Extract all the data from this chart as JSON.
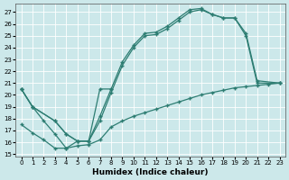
{
  "xlabel": "Humidex (Indice chaleur)",
  "background_color": "#cce8ea",
  "grid_color": "#b8d8dc",
  "line_color": "#2d7d72",
  "xlim": [
    -0.5,
    23.5
  ],
  "ylim": [
    14.8,
    27.7
  ],
  "yticks": [
    15,
    16,
    17,
    18,
    19,
    20,
    21,
    22,
    23,
    24,
    25,
    26,
    27
  ],
  "xticks": [
    0,
    1,
    2,
    3,
    4,
    5,
    6,
    7,
    8,
    9,
    10,
    11,
    12,
    13,
    14,
    15,
    16,
    17,
    18,
    19,
    20,
    21,
    22,
    23
  ],
  "curve1_x": [
    0,
    1,
    3,
    4,
    5,
    6,
    7,
    8,
    9,
    10,
    11,
    12,
    13,
    14,
    15,
    16,
    17,
    18,
    19,
    20,
    21,
    23
  ],
  "curve1_y": [
    20.5,
    19.0,
    17.8,
    16.7,
    16.1,
    16.1,
    18.2,
    20.5,
    22.8,
    24.2,
    25.2,
    25.3,
    25.8,
    26.5,
    27.2,
    27.3,
    26.8,
    26.5,
    26.5,
    25.2,
    21.2,
    21.0
  ],
  "curve2_x": [
    0,
    1,
    3,
    4,
    5,
    6,
    7,
    8,
    9,
    10,
    11,
    12,
    13,
    14,
    15,
    16,
    17,
    18,
    19,
    20,
    21,
    23
  ],
  "curve2_y": [
    20.5,
    19.0,
    17.8,
    16.7,
    16.1,
    16.1,
    17.8,
    20.2,
    22.5,
    24.0,
    25.0,
    25.1,
    25.6,
    26.3,
    27.0,
    27.2,
    26.8,
    26.5,
    26.5,
    25.0,
    21.0,
    21.0
  ],
  "curve3_x": [
    0,
    1,
    2,
    3,
    4,
    5,
    6,
    7,
    8,
    9,
    10,
    11,
    12,
    13,
    14,
    15,
    16,
    17,
    18,
    19,
    20,
    21,
    22,
    23
  ],
  "curve3_y": [
    17.5,
    16.8,
    16.2,
    15.5,
    15.5,
    15.7,
    15.8,
    16.2,
    17.3,
    17.8,
    18.2,
    18.5,
    18.8,
    19.1,
    19.4,
    19.7,
    20.0,
    20.2,
    20.4,
    20.6,
    20.7,
    20.8,
    20.9,
    21.0
  ],
  "curve4_x": [
    0,
    1,
    2,
    3,
    4,
    5,
    6,
    7,
    8
  ],
  "curve4_y": [
    20.5,
    19.0,
    17.8,
    16.7,
    15.5,
    16.1,
    16.1,
    20.5,
    20.5
  ]
}
